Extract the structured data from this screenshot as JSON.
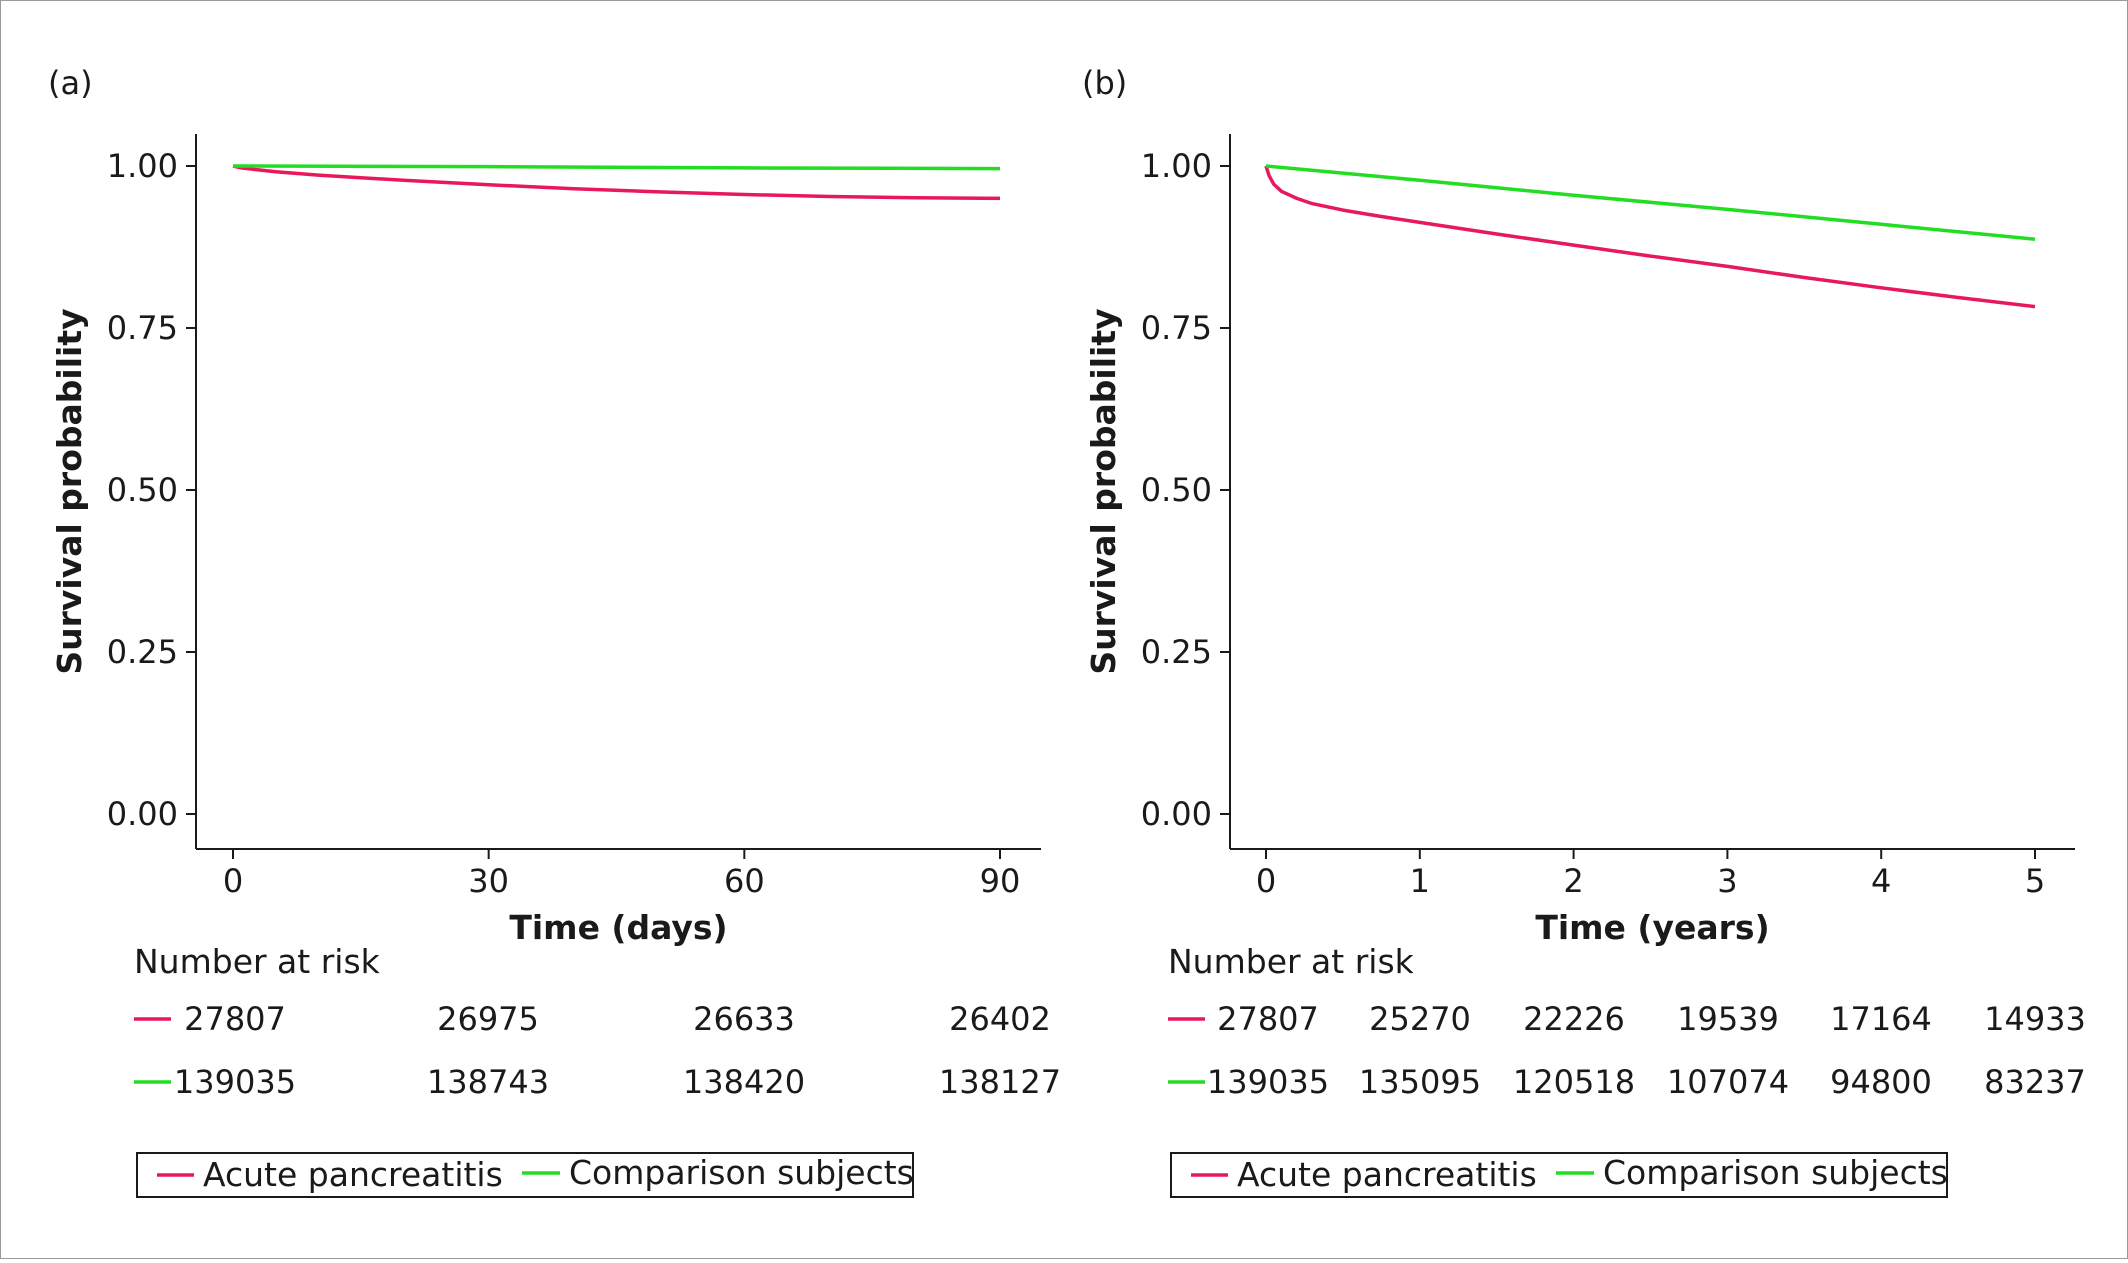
{
  "colors": {
    "acute": "#e8195a",
    "comparison": "#22dd22",
    "axis": "#1a1a1a",
    "frame": "#9a9a9a"
  },
  "chart_data": [
    {
      "type": "line",
      "panel_label": "(a)",
      "xlabel": "Time (days)",
      "ylabel": "Survival probability",
      "xlim": [
        0,
        90
      ],
      "ylim": [
        0,
        1
      ],
      "xticks": [
        "0",
        "30",
        "60",
        "90"
      ],
      "yticks": [
        "0.00",
        "0.25",
        "0.50",
        "0.75",
        "1.00"
      ],
      "grid": false,
      "series": [
        {
          "name": "Acute pancreatitis",
          "color_key": "acute",
          "x": [
            0,
            1,
            3,
            5,
            10,
            15,
            20,
            30,
            40,
            50,
            60,
            70,
            80,
            90
          ],
          "y": [
            1.0,
            0.997,
            0.994,
            0.991,
            0.986,
            0.982,
            0.978,
            0.971,
            0.965,
            0.96,
            0.956,
            0.953,
            0.951,
            0.95
          ]
        },
        {
          "name": "Comparison subjects",
          "color_key": "comparison",
          "x": [
            0,
            30,
            60,
            90
          ],
          "y": [
            1.0,
            0.999,
            0.997,
            0.996
          ]
        }
      ],
      "risk_table": {
        "title": "Number at risk",
        "rows": [
          {
            "color_key": "acute",
            "values": [
              "27807",
              "26975",
              "26633",
              "26402"
            ]
          },
          {
            "color_key": "comparison",
            "values": [
              "139035",
              "138743",
              "138420",
              "138127"
            ]
          }
        ]
      },
      "legend": {
        "position": "bottom",
        "items": [
          "Acute pancreatitis",
          "Comparison subjects"
        ]
      }
    },
    {
      "type": "line",
      "panel_label": "(b)",
      "xlabel": "Time (years)",
      "ylabel": "Survival probability",
      "xlim": [
        0,
        5
      ],
      "ylim": [
        0,
        1
      ],
      "xticks": [
        "0",
        "1",
        "2",
        "3",
        "4",
        "5"
      ],
      "yticks": [
        "0.00",
        "0.25",
        "0.50",
        "0.75",
        "1.00"
      ],
      "grid": false,
      "series": [
        {
          "name": "Acute pancreatitis",
          "color_key": "acute",
          "x": [
            0,
            0.02,
            0.05,
            0.1,
            0.2,
            0.3,
            0.5,
            0.75,
            1,
            1.5,
            2,
            2.5,
            3,
            3.5,
            4,
            4.5,
            5
          ],
          "y": [
            1.0,
            0.985,
            0.972,
            0.961,
            0.95,
            0.942,
            0.932,
            0.922,
            0.913,
            0.895,
            0.878,
            0.861,
            0.845,
            0.828,
            0.812,
            0.797,
            0.783
          ]
        },
        {
          "name": "Comparison subjects",
          "color_key": "comparison",
          "x": [
            0,
            1,
            2,
            3,
            4,
            5
          ],
          "y": [
            1.0,
            0.978,
            0.955,
            0.933,
            0.91,
            0.887
          ]
        }
      ],
      "risk_table": {
        "title": "Number at risk",
        "rows": [
          {
            "color_key": "acute",
            "values": [
              "27807",
              "25270",
              "22226",
              "19539",
              "17164",
              "14933"
            ]
          },
          {
            "color_key": "comparison",
            "values": [
              "139035",
              "135095",
              "120518",
              "107074",
              "94800",
              "83237"
            ]
          }
        ]
      },
      "legend": {
        "position": "bottom",
        "items": [
          "Acute pancreatitis",
          "Comparison subjects"
        ]
      }
    }
  ]
}
